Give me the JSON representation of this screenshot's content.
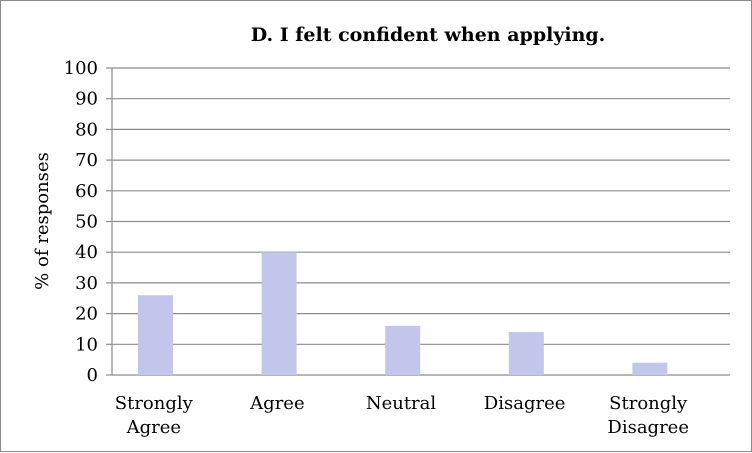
{
  "chart_data": {
    "type": "bar",
    "title": "D. I felt confident when applying.",
    "xlabel": "",
    "ylabel": "% of responses",
    "ylim": [
      0,
      100
    ],
    "yticks": [
      0,
      10,
      20,
      30,
      40,
      50,
      60,
      70,
      80,
      90,
      100
    ],
    "grid": true,
    "legend": "none",
    "categories": [
      [
        "Strongly",
        "Agree"
      ],
      [
        "Agree"
      ],
      [
        "Neutral"
      ],
      [
        "Disagree"
      ],
      [
        "Strongly",
        "Disagree"
      ]
    ],
    "values": [
      26,
      40,
      16,
      14,
      4
    ],
    "colors": {
      "bar": "#c3c5ea",
      "grid": "#8c8c8c",
      "axis": "#8c8c8c",
      "border": "#8c8c8c"
    }
  }
}
